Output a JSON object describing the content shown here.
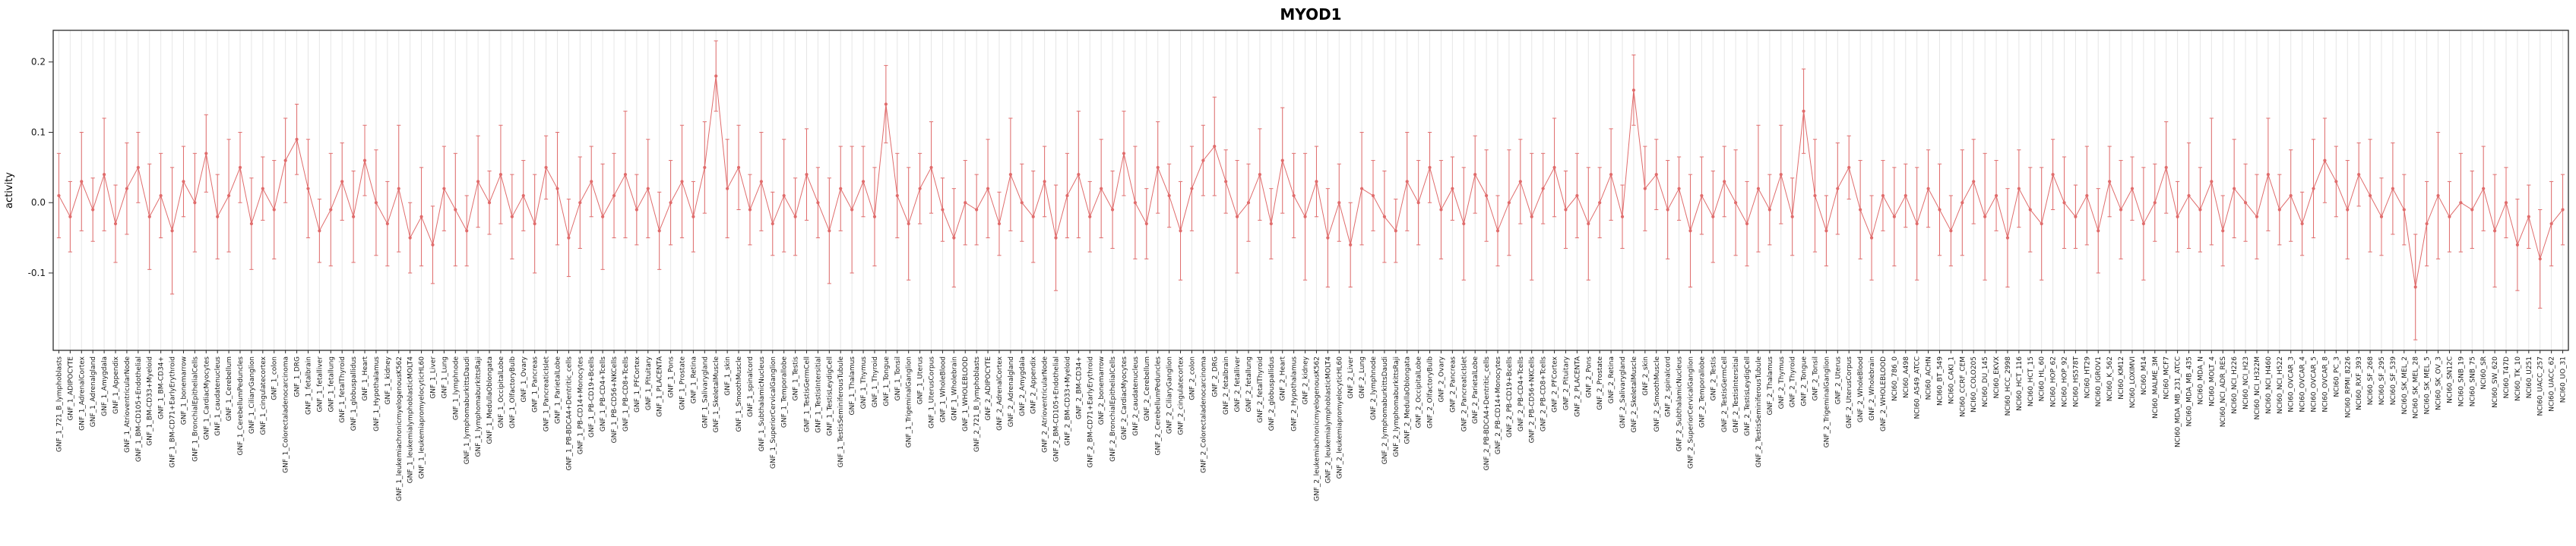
{
  "chart_data": {
    "type": "scatter",
    "subtype": "points-with-error-bars-connected",
    "title": "MYOD1",
    "xlabel": "",
    "ylabel": "activity",
    "ylim": [
      -0.21,
      0.245
    ],
    "yticks": [
      -0.1,
      0.0,
      0.1,
      0.2
    ],
    "grid": "vertical-light",
    "legend": "none",
    "point_color": "#e06c6c",
    "grid_color": "#e6e6e6",
    "box_color": "#2b2b2b",
    "categories": [
      "GNF_1_721_B_lymphoblasts",
      "GNF_1_ADIPOCYTE",
      "GNF_1_AdrenalCortex",
      "GNF_1_Adrenalgland",
      "GNF_1_Amygdala",
      "GNF_1_Appendix",
      "GNF_1_AtrioventricularNode",
      "GNF_1_BM-CD105+Endothelial",
      "GNF_1_BM-CD33+Myeloid",
      "GNF_1_BM-CD34+",
      "GNF_1_BM-CD71+EarlyErythroid",
      "GNF_1_bonemarrow",
      "GNF_1_BronchialEpithelialCells",
      "GNF_1_CardiacMyocytes",
      "GNF_1_caudatenucleus",
      "GNF_1_Cerebellum",
      "GNF_1_CerebellumPeduncles",
      "GNF_1_CiliaryGanglion",
      "GNF_1_cingulatecortex",
      "GNF_1_colon",
      "GNF_1_Colorectaladenocarcinoma",
      "GNF_1_DRG",
      "GNF_1_fetalbrain",
      "GNF_1_fetalliver",
      "GNF_1_fetallung",
      "GNF_1_fetalThyroid",
      "GNF_1_globuspallidus",
      "GNF_1_Heart",
      "GNF_1_Hypothalamus",
      "GNF_1_kidney",
      "GNF_1_leukemiachronicmyelogenousK562",
      "GNF_1_leukemialymphoblasticMOLT4",
      "GNF_1_leukemiapromyelocyticHL60",
      "GNF_1_Liver",
      "GNF_1_Lung",
      "GNF_1_lymphnode",
      "GNF_1_lymphomaburkittsDaudi",
      "GNF_1_lymphomaburkittsRaji",
      "GNF_1_MedullaOblongata",
      "GNF_1_OccipitalLobe",
      "GNF_1_OlfactoryBulb",
      "GNF_1_Ovary",
      "GNF_1_Pancreas",
      "GNF_1_PancreaticIslet",
      "GNF_1_ParietalLobe",
      "GNF_1_PB-BDCA4+Dentritic_cells",
      "GNF_1_PB-CD14+Monocytes",
      "GNF_1_PB-CD19+Bcells",
      "GNF_1_PB-CD4+Tcells",
      "GNF_1_PB-CD56+NKCells",
      "GNF_1_PB-CD8+Tcells",
      "GNF_1_PFCortex",
      "GNF_1_Pituitary",
      "GNF_1_PLACENTA",
      "GNF_1_Pons",
      "GNF_1_Prostate",
      "GNF_1_Retina",
      "GNF_1_Salivarygland",
      "GNF_1_SkeletalMuscle",
      "GNF_1_skin",
      "GNF_1_SmoothMuscle",
      "GNF_1_spinalcord",
      "GNF_1_SubthalamicNucleus",
      "GNF_1_SuperiorCervicalGanglion",
      "GNF_1_Temporallobe",
      "GNF_1_Testis",
      "GNF_1_TestisGermCell",
      "GNF_1_TestisIntersitial",
      "GNF_1_TestisLeydigCell",
      "GNF_1_TestisSeminiferousTubule",
      "GNF_1_Thalamus",
      "GNF_1_Thymus",
      "GNF_1_Thyroid",
      "GNF_1_Tongue",
      "GNF_1_Tonsil",
      "GNF_1_TrigeminalGanglion",
      "GNF_1_Uterus",
      "GNF_1_UterusCorpus",
      "GNF_1_WholeBlood",
      "GNF_1_Wholebrain",
      "GNF_1_WHOLEBLOOD",
      "GNF_2_721_B_lymphoblasts",
      "GNF_2_ADIPOCYTE",
      "GNF_2_AdrenalCortex",
      "GNF_2_Adrenalgland",
      "GNF_2_Amygdala",
      "GNF_2_Appendix",
      "GNF_2_AtrioventricularNode",
      "GNF_2_BM-CD105+Endothelial",
      "GNF_2_BM-CD33+Myeloid",
      "GNF_2_BM-CD34+",
      "GNF_2_BM-CD71+EarlyErythroid",
      "GNF_2_bonemarrow",
      "GNF_2_BronchialEpithelialCells",
      "GNF_2_CardiacMyocytes",
      "GNF_2_caudatenucleus",
      "GNF_2_Cerebellum",
      "GNF_2_CerebellumPeduncles",
      "GNF_2_CiliaryGanglion",
      "GNF_2_cingulatecortex",
      "GNF_2_colon",
      "GNF_2_Colorectaladenocarcinoma",
      "GNF_2_DRG",
      "GNF_2_fetalbrain",
      "GNF_2_fetalliver",
      "GNF_2_fetallung",
      "GNF_2_fetalThyroid",
      "GNF_2_globuspallidus",
      "GNF_2_Heart",
      "GNF_2_Hypothalamus",
      "GNF_2_kidney",
      "GNF_2_leukemiachronicmyelogenousK562",
      "GNF_2_leukemialymphoblasticMOLT4",
      "GNF_2_leukemiapromyelocyticHL60",
      "GNF_2_Liver",
      "GNF_2_Lung",
      "GNF_2_lymphnode",
      "GNF_2_lymphomaburkittsDaudi",
      "GNF_2_lymphomaburkittsRaji",
      "GNF_2_MedullaOblongata",
      "GNF_2_OccipitalLobe",
      "GNF_2_OlfactoryBulb",
      "GNF_2_Ovary",
      "GNF_2_Pancreas",
      "GNF_2_PancreaticIslet",
      "GNF_2_ParietalLobe",
      "GNF_2_PB-BDCA4+Dentritic_cells",
      "GNF_2_PB-CD14+Monocytes",
      "GNF_2_PB-CD19+Bcells",
      "GNF_2_PB-CD4+Tcells",
      "GNF_2_PB-CD56+NKCells",
      "GNF_2_PB-CD8+Tcells",
      "GNF_2_PFCortex",
      "GNF_2_Pituitary",
      "GNF_2_PLACENTA",
      "GNF_2_Pons",
      "GNF_2_Prostate",
      "GNF_2_Retina",
      "GNF_2_Salivarygland",
      "GNF_2_SkeletalMuscle",
      "GNF_2_skin",
      "GNF_2_SmoothMuscle",
      "GNF_2_spinalcord",
      "GNF_2_SubthalamicNucleus",
      "GNF_2_SuperiorCervicalGanglion",
      "GNF_2_Temporallobe",
      "GNF_2_Testis",
      "GNF_2_TestisGermCell",
      "GNF_2_TestisIntersitial",
      "GNF_2_TestisLeydigCell",
      "GNF_2_TestisSeminiferousTubule",
      "GNF_2_Thalamus",
      "GNF_2_Thymus",
      "GNF_2_Thyroid",
      "GNF_2_Tongue",
      "GNF_2_Tonsil",
      "GNF_2_TrigeminalGanglion",
      "GNF_2_Uterus",
      "GNF_2_UterusCorpus",
      "GNF_2_WholeBlood",
      "GNF_2_Wholebrain",
      "GNF_2_WHOLEBLOOD",
      "NCI60_786_0",
      "NCI60_A498",
      "NCI60_A549_ATCC",
      "NCI60_ACHN",
      "NCI60_BT_549",
      "NCI60_CAKI_1",
      "NCI60_CCRF_CEM",
      "NCI60_COLO205",
      "NCI60_DU_145",
      "NCI60_EKVX",
      "NCI60_HCC_2998",
      "NCI60_HCT_116",
      "NCI60_HCT_15",
      "NCI60_HL_60",
      "NCI60_HOP_62",
      "NCI60_HOP_92",
      "NCI60_HS578T",
      "NCI60_HT29",
      "NCI60_IGROV1",
      "NCI60_K_562",
      "NCI60_KM12",
      "NCI60_LOXIMVI",
      "NCI60_M14",
      "NCI60_MALME_3M",
      "NCI60_MCF7",
      "NCI60_MDA_MB_231_ATCC",
      "NCI60_MDA_MB_435",
      "NCI60_MDA_N",
      "NCI60_MOLT_4",
      "NCI60_NCI_ADR_RES",
      "NCI60_NCI_H226",
      "NCI60_NCI_H23",
      "NCI60_NCI_H322M",
      "NCI60_NCI_H460",
      "NCI60_NCI_H522",
      "NCI60_OVCAR_3",
      "NCI60_OVCAR_4",
      "NCI60_OVCAR_5",
      "NCI60_OVCAR_8",
      "NCI60_PC_3",
      "NCI60_RPMI_8226",
      "NCI60_RXF_393",
      "NCI60_SF_268",
      "NCI60_SF_295",
      "NCI60_SF_539",
      "NCI60_SK_MEL_2",
      "NCI60_SK_MEL_28",
      "NCI60_SK_MEL_5",
      "NCI60_SK_OV_3",
      "NCI60_SN12C",
      "NCI60_SNB_19",
      "NCI60_SNB_75",
      "NCI60_SR",
      "NCI60_SW_620",
      "NCI60_T47D",
      "NCI60_TK_10",
      "NCI60_U251",
      "NCI60_UACC_257",
      "NCI60_UACC_62",
      "NCI60_UO_31"
    ],
    "values": [
      0.01,
      -0.02,
      0.03,
      -0.01,
      0.04,
      -0.03,
      0.02,
      0.05,
      -0.02,
      0.01,
      -0.04,
      0.03,
      0,
      0.07,
      -0.02,
      0.01,
      0.05,
      -0.03,
      0.02,
      -0.01,
      0.06,
      0.09,
      0.02,
      -0.04,
      -0.01,
      0.03,
      -0.02,
      0.06,
      0,
      -0.03,
      0.02,
      -0.05,
      -0.02,
      -0.06,
      0.02,
      -0.01,
      -0.04,
      0.03,
      0,
      0.04,
      -0.02,
      0.01,
      -0.03,
      0.05,
      0.02,
      -0.05,
      0,
      0.03,
      -0.02,
      0.01,
      0.04,
      -0.01,
      0.02,
      -0.04,
      0,
      0.03,
      -0.02,
      0.05,
      0.18,
      0.02,
      0.05,
      -0.01,
      0.03,
      -0.03,
      0.01,
      -0.02,
      0.04,
      0,
      -0.04,
      0.02,
      -0.01,
      0.03,
      -0.02,
      0.14,
      0.01,
      -0.03,
      0.02,
      0.05,
      -0.01,
      -0.05,
      0,
      -0.01,
      0.02,
      -0.03,
      0.04,
      0,
      -0.02,
      0.03,
      -0.05,
      0.01,
      0.04,
      -0.02,
      0.02,
      -0.01,
      0.07,
      0,
      -0.03,
      0.05,
      0.01,
      -0.04,
      0.02,
      0.06,
      0.08,
      0.03,
      -0.02,
      0,
      0.04,
      -0.03,
      0.06,
      0.01,
      -0.02,
      0.03,
      -0.05,
      0,
      -0.06,
      0.02,
      0.01,
      -0.02,
      -0.04,
      0.03,
      0,
      0.05,
      -0.01,
      0.02,
      -0.03,
      0.04,
      0.01,
      -0.04,
      0,
      0.03,
      -0.02,
      0.02,
      0.05,
      -0.01,
      0.01,
      -0.03,
      0,
      0.04,
      -0.02,
      0.16,
      0.02,
      0.04,
      -0.01,
      0.02,
      -0.04,
      0.01,
      -0.02,
      0.03,
      0,
      -0.03,
      0.02,
      -0.01,
      0.04,
      -0.02,
      0.13,
      0.01,
      -0.04,
      0.02,
      0.05,
      -0.01,
      -0.05,
      0.01,
      -0.02,
      0.01,
      -0.03,
      0.02,
      -0.01,
      -0.04,
      0,
      0.03,
      -0.02,
      0.01,
      -0.05,
      0.02,
      -0.01,
      -0.03,
      0.04,
      0,
      -0.02,
      0.01,
      -0.04,
      0.03,
      -0.01,
      0.02,
      -0.03,
      0,
      0.05,
      -0.02,
      0.01,
      -0.01,
      0.03,
      -0.04,
      0.02,
      0,
      -0.02,
      0.04,
      -0.01,
      0.01,
      -0.03,
      0.02,
      0.06,
      0.03,
      -0.01,
      0.04,
      0.01,
      -0.02,
      0.02,
      -0.01,
      -0.12,
      -0.03,
      0.01,
      -0.02,
      0,
      -0.01,
      0.02,
      -0.04,
      0,
      -0.06,
      -0.02,
      -0.08,
      -0.03,
      -0.01
    ],
    "ci_halfwidth": [
      0.06,
      0.05,
      0.07,
      0.045,
      0.08,
      0.055,
      0.065,
      0.05,
      0.075,
      0.06,
      0.09,
      0.05,
      0.07,
      0.055,
      0.06,
      0.08,
      0.05,
      0.065,
      0.045,
      0.07,
      0.06,
      0.05,
      0.07,
      0.045,
      0.08,
      0.055,
      0.065,
      0.05,
      0.075,
      0.06,
      0.09,
      0.05,
      0.07,
      0.055,
      0.06,
      0.08,
      0.05,
      0.065,
      0.045,
      0.07,
      0.06,
      0.05,
      0.07,
      0.045,
      0.08,
      0.055,
      0.065,
      0.05,
      0.075,
      0.06,
      0.09,
      0.05,
      0.07,
      0.055,
      0.06,
      0.08,
      0.05,
      0.065,
      0.05,
      0.07,
      0.06,
      0.05,
      0.07,
      0.045,
      0.08,
      0.055,
      0.065,
      0.05,
      0.075,
      0.06,
      0.09,
      0.05,
      0.07,
      0.055,
      0.06,
      0.08,
      0.05,
      0.065,
      0.045,
      0.07,
      0.06,
      0.05,
      0.07,
      0.045,
      0.08,
      0.055,
      0.065,
      0.05,
      0.075,
      0.06,
      0.09,
      0.05,
      0.07,
      0.055,
      0.06,
      0.08,
      0.05,
      0.065,
      0.045,
      0.07,
      0.06,
      0.05,
      0.07,
      0.045,
      0.08,
      0.055,
      0.065,
      0.05,
      0.075,
      0.06,
      0.09,
      0.05,
      0.07,
      0.055,
      0.06,
      0.08,
      0.05,
      0.065,
      0.045,
      0.07,
      0.06,
      0.05,
      0.07,
      0.045,
      0.08,
      0.055,
      0.065,
      0.05,
      0.075,
      0.06,
      0.09,
      0.05,
      0.07,
      0.055,
      0.06,
      0.08,
      0.05,
      0.065,
      0.045,
      0.05,
      0.06,
      0.05,
      0.07,
      0.045,
      0.08,
      0.055,
      0.065,
      0.05,
      0.075,
      0.06,
      0.09,
      0.05,
      0.07,
      0.055,
      0.06,
      0.08,
      0.05,
      0.065,
      0.045,
      0.07,
      0.06,
      0.05,
      0.07,
      0.045,
      0.08,
      0.055,
      0.065,
      0.05,
      0.075,
      0.06,
      0.09,
      0.05,
      0.07,
      0.055,
      0.06,
      0.08,
      0.05,
      0.065,
      0.045,
      0.07,
      0.06,
      0.05,
      0.07,
      0.045,
      0.08,
      0.055,
      0.065,
      0.05,
      0.075,
      0.06,
      0.09,
      0.05,
      0.07,
      0.055,
      0.06,
      0.08,
      0.05,
      0.065,
      0.045,
      0.07,
      0.06,
      0.05,
      0.07,
      0.045,
      0.08,
      0.055,
      0.065,
      0.05,
      0.075,
      0.06,
      0.09,
      0.05,
      0.07,
      0.055,
      0.06,
      0.08,
      0.05,
      0.065,
      0.045,
      0.07,
      0.06,
      0.05
    ]
  }
}
